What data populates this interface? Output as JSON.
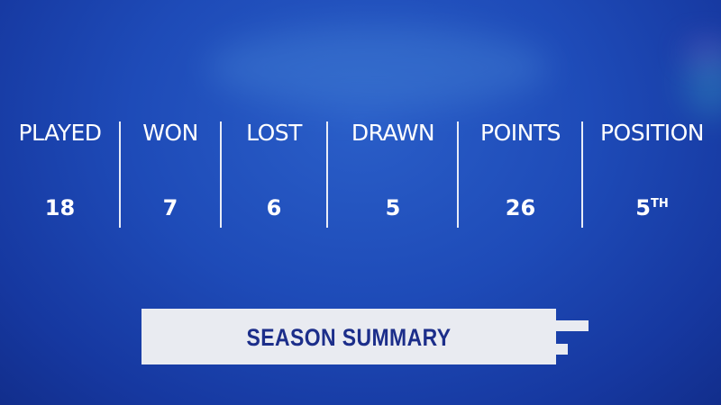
{
  "stats": [
    {
      "label": "PLAYED",
      "value": "18",
      "suffix": ""
    },
    {
      "label": "WON",
      "value": "7",
      "suffix": ""
    },
    {
      "label": "LOST",
      "value": "6",
      "suffix": ""
    },
    {
      "label": "DRAWN",
      "value": "5",
      "suffix": ""
    },
    {
      "label": "POINTS",
      "value": "26",
      "suffix": ""
    },
    {
      "label": "POSITION",
      "value": "5",
      "suffix": "TH"
    }
  ],
  "banner": {
    "title": "SEASON SUMMARY"
  },
  "colors": {
    "background": "#1e4bb8",
    "banner": "#e9ebf1",
    "banner_text": "#1c2e8a"
  }
}
